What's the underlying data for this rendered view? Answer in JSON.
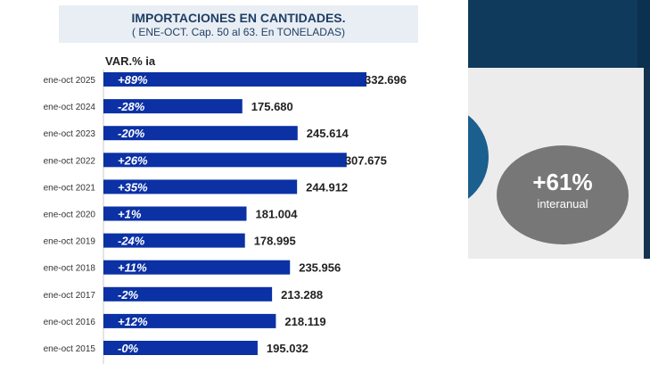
{
  "chart_data": {
    "type": "bar",
    "orientation": "horizontal",
    "title": "IMPORTACIONES EN CANTIDADES.",
    "subtitle": "( ENE-OCT. Cap. 50 al 63. En TONELADAS)",
    "column_header": "VAR.% ia",
    "categories": [
      "ene-oct 2025",
      "ene-oct 2024",
      "ene-oct 2023",
      "ene-oct 2022",
      "ene-oct 2021",
      "ene-oct 2020",
      "ene-oct 2019",
      "ene-oct 2018",
      "ene-oct 2017",
      "ene-oct 2016",
      "ene-oct 2015"
    ],
    "values": [
      332696,
      175680,
      245614,
      307675,
      244912,
      181004,
      178995,
      235956,
      213288,
      218119,
      195032
    ],
    "value_labels": [
      "332.696",
      "175.680",
      "245.614",
      "307.675",
      "244.912",
      "181.004",
      "178.995",
      "235.956",
      "213.288",
      "218.119",
      "195.032"
    ],
    "var_labels": [
      "+89%",
      "-28%",
      "-20%",
      "+26%",
      "+35%",
      "+1%",
      "-24%",
      "+11%",
      "-2%",
      "+12%",
      "-0%"
    ],
    "bar_color": "#0b31a5"
  },
  "side_panel": {
    "big_value": "+61%",
    "caption": "interanual"
  }
}
